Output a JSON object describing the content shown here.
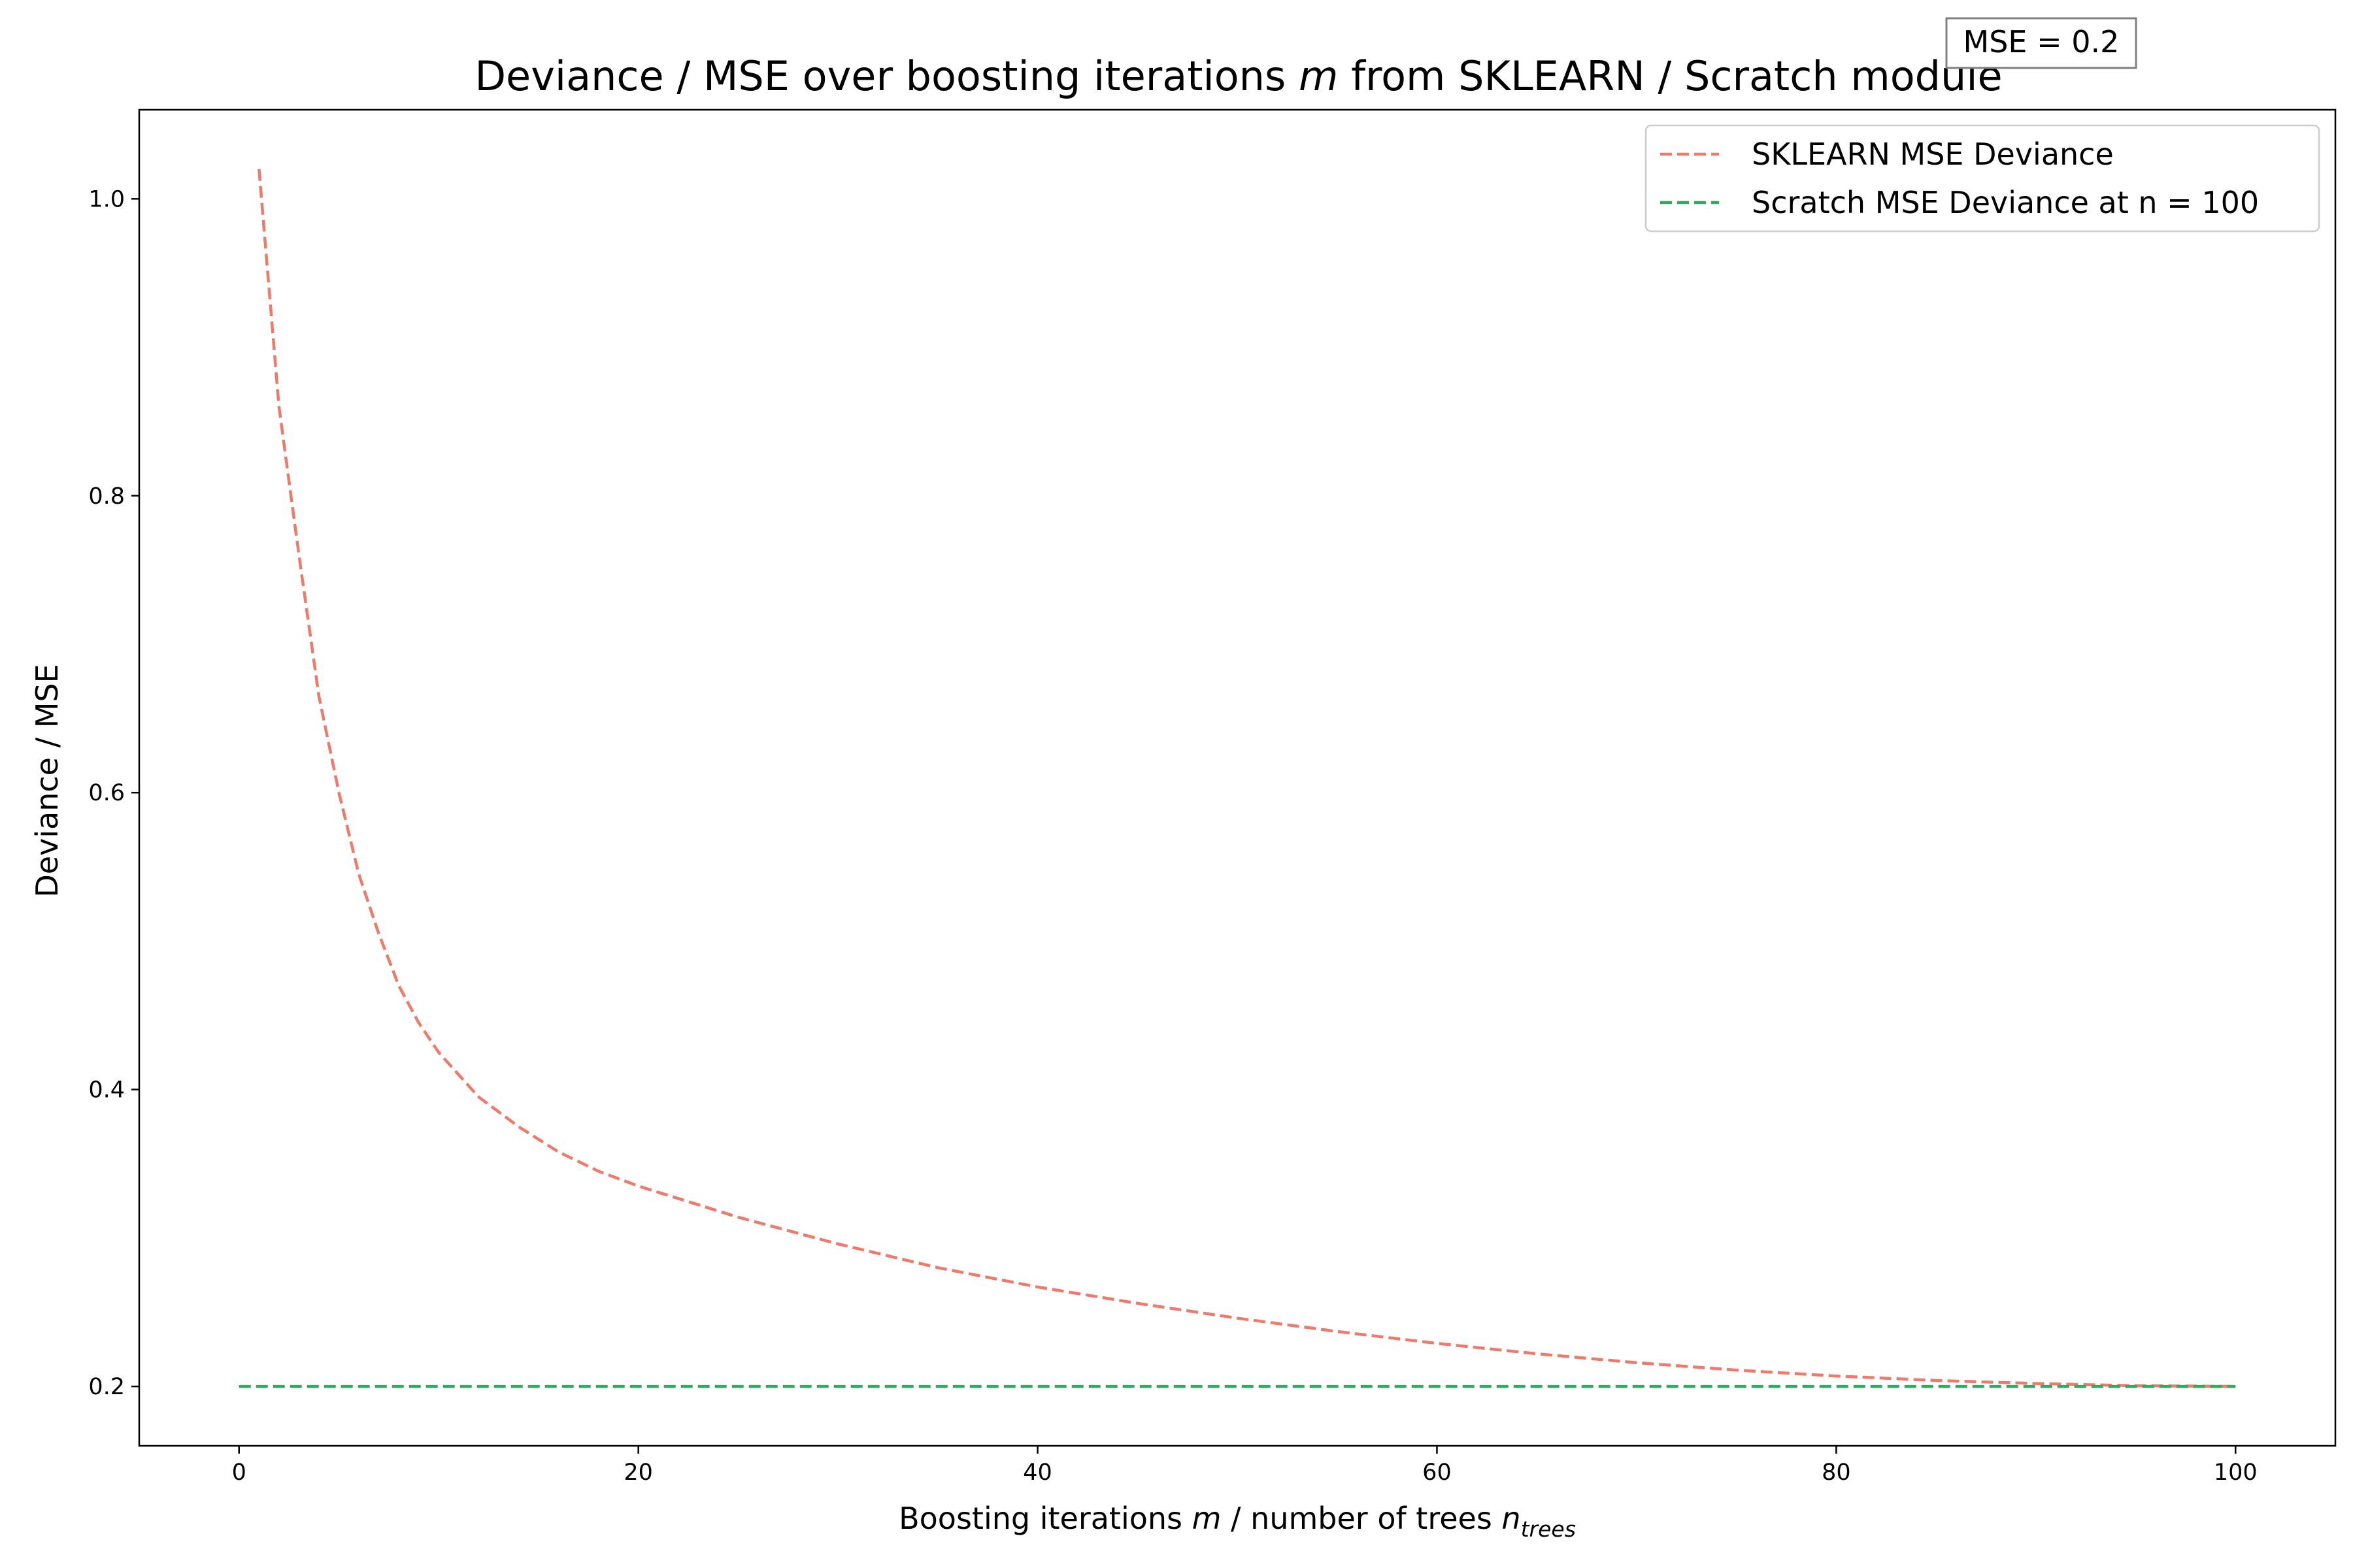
{
  "chart_data": {
    "type": "line",
    "title": {
      "pre": "Deviance / MSE over boosting iterations ",
      "var": "m",
      "post": " from SKLEARN / Scratch module"
    },
    "xlabel": {
      "pre": "Boosting iterations ",
      "var": "m",
      "mid": " / number of trees ",
      "base": "n",
      "sub": "trees"
    },
    "ylabel": "Deviance / MSE",
    "xlim": [
      -5,
      105
    ],
    "ylim": [
      0.16,
      1.06
    ],
    "xticks": [
      0,
      20,
      40,
      60,
      80,
      100
    ],
    "xtick_labels": [
      "0",
      "20",
      "40",
      "60",
      "80",
      "100"
    ],
    "yticks": [
      0.2,
      0.4,
      0.6,
      0.8,
      1.0
    ],
    "ytick_labels": [
      "0.2",
      "0.4",
      "0.6",
      "0.8",
      "1.0"
    ],
    "grid": false,
    "legend_position": "top-right",
    "annotation": "MSE = 0.2",
    "series": [
      {
        "name": "SKLEARN MSE Deviance",
        "color": "#f07a6a",
        "style": "dashed",
        "x": [
          1,
          2,
          3,
          4,
          5,
          6,
          7,
          8,
          9,
          10,
          12,
          14,
          16,
          18,
          20,
          25,
          30,
          35,
          40,
          45,
          50,
          55,
          60,
          65,
          70,
          75,
          80,
          85,
          90,
          95,
          100
        ],
        "y": [
          1.02,
          0.86,
          0.76,
          0.665,
          0.6,
          0.545,
          0.505,
          0.47,
          0.445,
          0.425,
          0.395,
          0.375,
          0.358,
          0.345,
          0.335,
          0.314,
          0.296,
          0.28,
          0.267,
          0.256,
          0.246,
          0.237,
          0.229,
          0.222,
          0.216,
          0.211,
          0.207,
          0.204,
          0.202,
          0.2005,
          0.2
        ]
      },
      {
        "name": "Scratch MSE Deviance at n = 100",
        "color": "#2eaa62",
        "style": "dashed",
        "x": [
          0,
          100
        ],
        "y": [
          0.2,
          0.2
        ]
      }
    ]
  }
}
